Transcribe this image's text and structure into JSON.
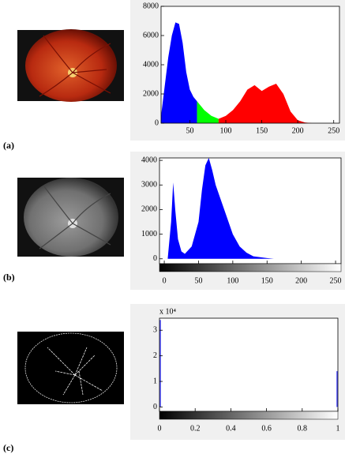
{
  "chart_data": [
    {
      "type": "area",
      "label": "(a)",
      "x": [
        10,
        15,
        20,
        25,
        30,
        35,
        40,
        45,
        50,
        55,
        60,
        70,
        80,
        90,
        100,
        110,
        120,
        130,
        140,
        150,
        160,
        170,
        180,
        190,
        200,
        210,
        220,
        240,
        255
      ],
      "series": [
        {
          "color": "#0000ff",
          "values": [
            500,
            2500,
            4500,
            6000,
            6900,
            6800,
            5500,
            3500,
            2300,
            1800,
            1500,
            null,
            null,
            null,
            null,
            null,
            null,
            null,
            null,
            null,
            null,
            null,
            null,
            null,
            null,
            null,
            null,
            null,
            null
          ]
        },
        {
          "color": "#00ff00",
          "values": [
            null,
            null,
            null,
            null,
            null,
            null,
            null,
            null,
            null,
            null,
            1500,
            900,
            500,
            300,
            null,
            null,
            null,
            null,
            null,
            null,
            null,
            null,
            null,
            null,
            null,
            null,
            null,
            null,
            null
          ]
        },
        {
          "color": "#ff0000",
          "values": [
            null,
            null,
            null,
            null,
            null,
            null,
            null,
            null,
            null,
            null,
            null,
            null,
            null,
            300,
            500,
            900,
            1500,
            2300,
            2600,
            2200,
            2500,
            2700,
            2000,
            800,
            200,
            50,
            0,
            0,
            0
          ]
        }
      ],
      "xlim": [
        10,
        258
      ],
      "ylim": [
        0,
        8000
      ],
      "xticks": [
        50,
        100,
        150,
        200,
        250
      ],
      "yticks": [
        0,
        2000,
        4000,
        6000,
        8000
      ]
    },
    {
      "type": "area",
      "label": "(b)",
      "colorbar": true,
      "x": [
        5,
        10,
        13,
        16,
        20,
        25,
        30,
        40,
        50,
        55,
        60,
        65,
        70,
        75,
        80,
        90,
        100,
        110,
        120,
        130,
        150,
        160,
        255
      ],
      "series": [
        {
          "color": "#0000ff",
          "values": [
            0,
            1500,
            3100,
            2000,
            800,
            300,
            200,
            500,
            1500,
            2800,
            3800,
            4100,
            3600,
            3000,
            2600,
            1800,
            1000,
            500,
            250,
            100,
            30,
            0,
            0
          ]
        }
      ],
      "xlim": [
        -7,
        258
      ],
      "ylim": [
        -200,
        4100
      ],
      "xticks": [
        0,
        50,
        100,
        150,
        200,
        250
      ],
      "yticks": [
        0,
        1000,
        2000,
        3000,
        4000
      ]
    },
    {
      "type": "bar",
      "label": "(c)",
      "colorbar": true,
      "y_multiplier": "x 10⁴",
      "x": [
        0,
        1
      ],
      "series": [
        {
          "color": "#4040ff",
          "values": [
            3.4,
            1.4
          ]
        }
      ],
      "xlim": [
        0,
        1
      ],
      "ylim": [
        -0.17,
        3.47
      ],
      "xticks": [
        0,
        0.2,
        0.4,
        0.6,
        0.8,
        1
      ],
      "yticks": [
        0,
        1,
        2,
        3
      ]
    }
  ]
}
